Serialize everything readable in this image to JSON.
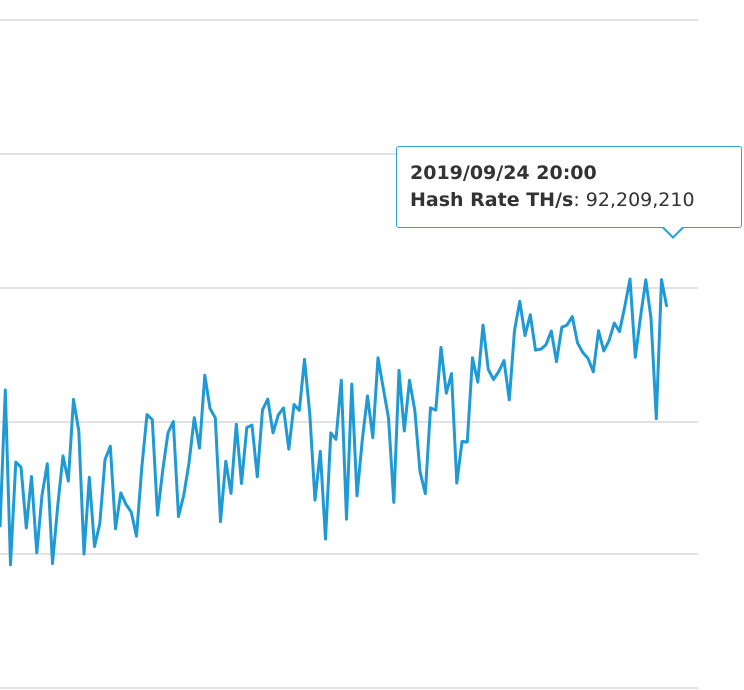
{
  "chart_data": {
    "type": "line",
    "grid": true,
    "series": [
      {
        "color": "#1f9ad4",
        "values": [
          10.0,
          61.2,
          -4.0,
          34.3,
          32.4,
          9.7,
          28.9,
          0.4,
          21.9,
          33.7,
          -3.6,
          18.2,
          36.6,
          27.2,
          57.7,
          45.9,
          0.0,
          28.6,
          2.8,
          11.3,
          35.2,
          40.2,
          9.4,
          22.8,
          18.5,
          15.6,
          6.6,
          32.3,
          52.0,
          50.1,
          14.5,
          31.4,
          45.2,
          49.4,
          14.0,
          22.0,
          33.9,
          50.9,
          39.5,
          66.7,
          54.3,
          50.8,
          12.1,
          34.6,
          22.6,
          48.4,
          26.3,
          47.2,
          48.1,
          28.8,
          53.8,
          57.8,
          45.2,
          51.9,
          54.5,
          39.1,
          55.8,
          53.6,
          72.6,
          52.2,
          20.1,
          38.3,
          5.6,
          45.2,
          42.8,
          64.8,
          13.0,
          63.4,
          21.7,
          42.6,
          59.0,
          43.4,
          73.2,
          61.8,
          50.8,
          19.3,
          68.5,
          45.9,
          64.8,
          53.6,
          30.8,
          22.5,
          54.5,
          53.7,
          77.1,
          60.0,
          67.3,
          26.5,
          42.0,
          41.8,
          73.2,
          64.1,
          85.4,
          68.8,
          65.1,
          68.1,
          72.2,
          57.5,
          83.4,
          94.3,
          81.5,
          89.3,
          76.1,
          76.4,
          78.1,
          83.2,
          71.8,
          84.6,
          85.4,
          88.6,
          78.8,
          75.2,
          73.0,
          68.0,
          83.3,
          75.8,
          79.6,
          86.2,
          83.0,
          92.4,
          102.6,
          73.4,
          88.4,
          102.3,
          88.0,
          50.5,
          102.4,
          92.2
        ]
      }
    ],
    "tooltip": {
      "title": "2019/09/24 20:00",
      "key": "Hash Rate TH/s",
      "value": "92,209,210"
    }
  }
}
